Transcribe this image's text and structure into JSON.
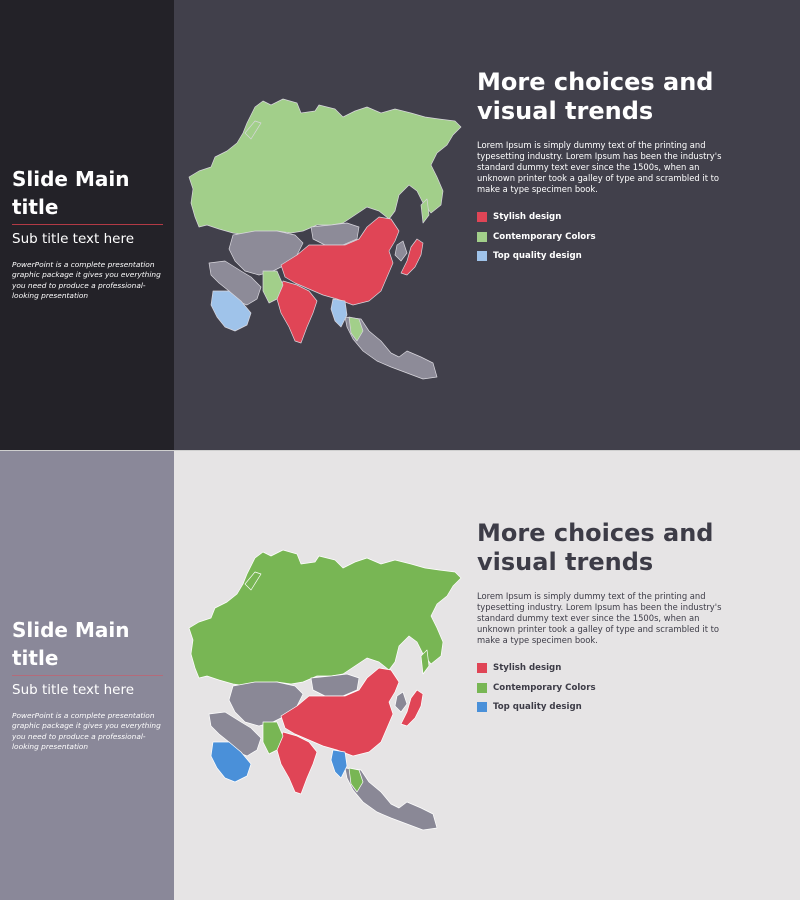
{
  "slides": [
    {
      "theme": "dark",
      "colors": {
        "background": "#41404b",
        "sidebar": "#232228",
        "accent_rule": "#b23a45",
        "grey_country": "#8d8b98"
      },
      "sidebar": {
        "title": "Slide Main title",
        "subtitle": "Sub title text here",
        "description": "PowerPoint is a complete presentation graphic package it gives you everything you need to produce a professional-looking presentation"
      },
      "main": {
        "headline": "More choices and visual trends",
        "body": "Lorem Ipsum is simply dummy text of the printing and typesetting industry. Lorem Ipsum has been the industry's standard dummy text ever since the 1500s, when an unknown printer took a galley of type and scrambled it to make a type specimen book.",
        "legend": [
          {
            "label": "Stylish design",
            "color": "#e04556"
          },
          {
            "label": "Contemporary Colors",
            "color": "#a2cf8a"
          },
          {
            "label": "Top quality design",
            "color": "#9fc3ea"
          }
        ]
      }
    },
    {
      "theme": "light",
      "colors": {
        "background": "#e6e4e5",
        "sidebar": "#8a8899",
        "accent_rule": "#b46b7a",
        "grey_country": "#8a8896"
      },
      "sidebar": {
        "title": "Slide Main title",
        "subtitle": "Sub title text here",
        "description": "PowerPoint is a complete presentation graphic package it gives you everything you need to produce a professional-looking presentation"
      },
      "main": {
        "headline": "More choices and visual trends",
        "body": "Lorem Ipsum is simply dummy text of the printing and typesetting industry. Lorem Ipsum has been the industry's standard dummy text ever since the 1500s, when an unknown printer took a galley of type and scrambled it to make a type specimen book.",
        "legend": [
          {
            "label": "Stylish design",
            "color": "#e04556"
          },
          {
            "label": "Contemporary Colors",
            "color": "#78b654"
          },
          {
            "label": "Top quality design",
            "color": "#4a90d9"
          }
        ]
      }
    }
  ]
}
